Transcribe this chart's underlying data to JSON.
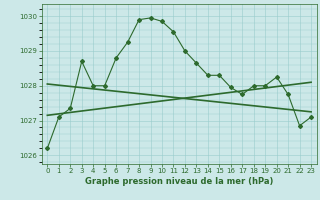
{
  "line1": {
    "x": [
      0,
      1,
      2,
      3,
      4,
      5,
      6,
      7,
      8,
      9,
      10,
      11,
      12,
      13,
      14,
      15,
      16,
      17,
      18,
      19,
      20,
      21,
      22,
      23
    ],
    "y": [
      1026.2,
      1027.1,
      1027.35,
      1028.7,
      1028.0,
      1028.0,
      1028.8,
      1029.25,
      1029.9,
      1029.95,
      1029.85,
      1029.55,
      1029.0,
      1028.65,
      1028.3,
      1028.3,
      1027.95,
      1027.75,
      1028.0,
      1028.0,
      1028.25,
      1027.75,
      1026.85,
      1027.1
    ],
    "color": "#2d6a2d",
    "linewidth": 0.8,
    "markersize": 2.0
  },
  "line2": {
    "x": [
      0,
      23
    ],
    "y": [
      1027.15,
      1028.1
    ],
    "color": "#2d6a2d",
    "linewidth": 1.2
  },
  "line3": {
    "x": [
      0,
      23
    ],
    "y": [
      1028.05,
      1027.25
    ],
    "color": "#2d6a2d",
    "linewidth": 1.2
  },
  "background_color": "#cce8e8",
  "grid_color": "#99cccc",
  "axis_color": "#2d6a2d",
  "xlabel": "Graphe pression niveau de la mer (hPa)",
  "xlabel_color": "#2d6a2d",
  "xlim": [
    -0.5,
    23.5
  ],
  "ylim": [
    1025.75,
    1030.35
  ],
  "yticks": [
    1026,
    1027,
    1028,
    1029,
    1030
  ],
  "xticks": [
    0,
    1,
    2,
    3,
    4,
    5,
    6,
    7,
    8,
    9,
    10,
    11,
    12,
    13,
    14,
    15,
    16,
    17,
    18,
    19,
    20,
    21,
    22,
    23
  ],
  "tick_fontsize": 5.0,
  "xlabel_fontsize": 6.0
}
